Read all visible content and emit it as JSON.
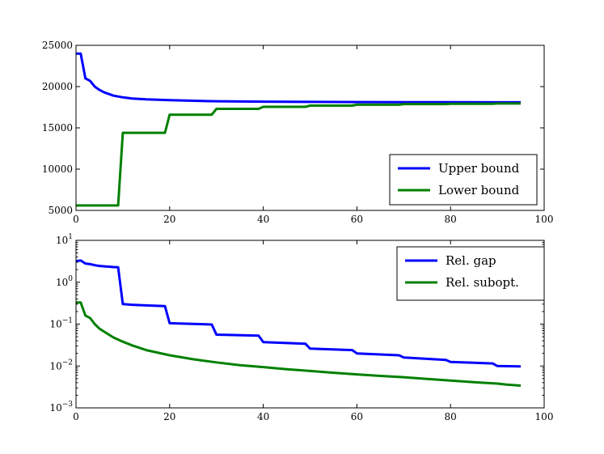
{
  "chart_data": [
    {
      "type": "line",
      "title": "",
      "xlabel": "",
      "ylabel": "",
      "xlim": [
        0,
        100
      ],
      "ylim": [
        5000,
        25000
      ],
      "yscale": "linear",
      "x_ticks": [
        0,
        20,
        40,
        60,
        80,
        100
      ],
      "y_ticks": [
        5000,
        10000,
        15000,
        20000,
        25000
      ],
      "x_tick_labels": [
        "0",
        "20",
        "40",
        "60",
        "80",
        "100"
      ],
      "y_tick_labels": [
        "5000",
        "10000",
        "15000",
        "20000",
        "25000"
      ],
      "grid": false,
      "legend_position": "lower-right",
      "series": [
        {
          "name": "Upper bound",
          "color": "#0000ff",
          "x": [
            0,
            1,
            2,
            3,
            4,
            5,
            6,
            8,
            10,
            12,
            15,
            20,
            25,
            30,
            40,
            50,
            60,
            70,
            80,
            90,
            95
          ],
          "y": [
            24000,
            24000,
            21000,
            20700,
            20000,
            19600,
            19300,
            18900,
            18700,
            18550,
            18450,
            18350,
            18280,
            18230,
            18180,
            18150,
            18130,
            18120,
            18110,
            18100,
            18100
          ]
        },
        {
          "name": "Lower bound",
          "color": "#008000",
          "x": [
            0,
            9,
            10,
            19,
            20,
            29,
            30,
            39,
            40,
            49,
            50,
            59,
            60,
            69,
            70,
            79,
            80,
            89,
            90,
            95
          ],
          "y": [
            5600,
            5600,
            14400,
            14400,
            16600,
            16600,
            17300,
            17300,
            17550,
            17550,
            17700,
            17700,
            17800,
            17800,
            17880,
            17880,
            17920,
            17920,
            17950,
            17950
          ]
        }
      ]
    },
    {
      "type": "line",
      "title": "",
      "xlabel": "",
      "ylabel": "",
      "xlim": [
        0,
        100
      ],
      "ylim": [
        0.001,
        10
      ],
      "yscale": "log",
      "x_ticks": [
        0,
        20,
        40,
        60,
        80,
        100
      ],
      "x_tick_labels": [
        "0",
        "20",
        "40",
        "60",
        "80",
        "100"
      ],
      "y_ticks": [
        0.001,
        0.01,
        0.1,
        1,
        10
      ],
      "y_tick_labels": [
        {
          "base": "10",
          "exp": "−3"
        },
        {
          "base": "10",
          "exp": "−2"
        },
        {
          "base": "10",
          "exp": "−1"
        },
        {
          "base": "10",
          "exp": "0"
        },
        {
          "base": "10",
          "exp": "1"
        }
      ],
      "grid": false,
      "legend_position": "upper-right",
      "series": [
        {
          "name": "Rel. gap",
          "color": "#0000ff",
          "x": [
            0,
            1,
            2,
            3,
            4,
            5,
            6,
            7,
            8,
            9,
            10,
            12,
            15,
            19,
            20,
            29,
            30,
            39,
            40,
            49,
            50,
            59,
            60,
            69,
            70,
            79,
            80,
            85,
            89,
            90,
            95
          ],
          "y": [
            3.2,
            3.3,
            2.8,
            2.7,
            2.55,
            2.45,
            2.4,
            2.35,
            2.3,
            2.28,
            0.3,
            0.29,
            0.28,
            0.27,
            0.105,
            0.098,
            0.056,
            0.053,
            0.037,
            0.034,
            0.026,
            0.024,
            0.02,
            0.018,
            0.016,
            0.014,
            0.0125,
            0.012,
            0.0115,
            0.01,
            0.0098
          ]
        },
        {
          "name": "Rel. subopt.",
          "color": "#008000",
          "x": [
            0,
            1,
            2,
            3,
            4,
            5,
            6,
            8,
            10,
            12,
            15,
            20,
            25,
            30,
            35,
            40,
            45,
            50,
            55,
            60,
            65,
            70,
            75,
            80,
            85,
            90,
            92,
            95
          ],
          "y": [
            0.33,
            0.33,
            0.16,
            0.14,
            0.1,
            0.078,
            0.066,
            0.048,
            0.038,
            0.031,
            0.024,
            0.018,
            0.0145,
            0.0122,
            0.0105,
            0.0094,
            0.0084,
            0.0076,
            0.0069,
            0.0063,
            0.0058,
            0.0054,
            0.0049,
            0.0045,
            0.0041,
            0.0038,
            0.0036,
            0.0034
          ]
        }
      ]
    }
  ]
}
